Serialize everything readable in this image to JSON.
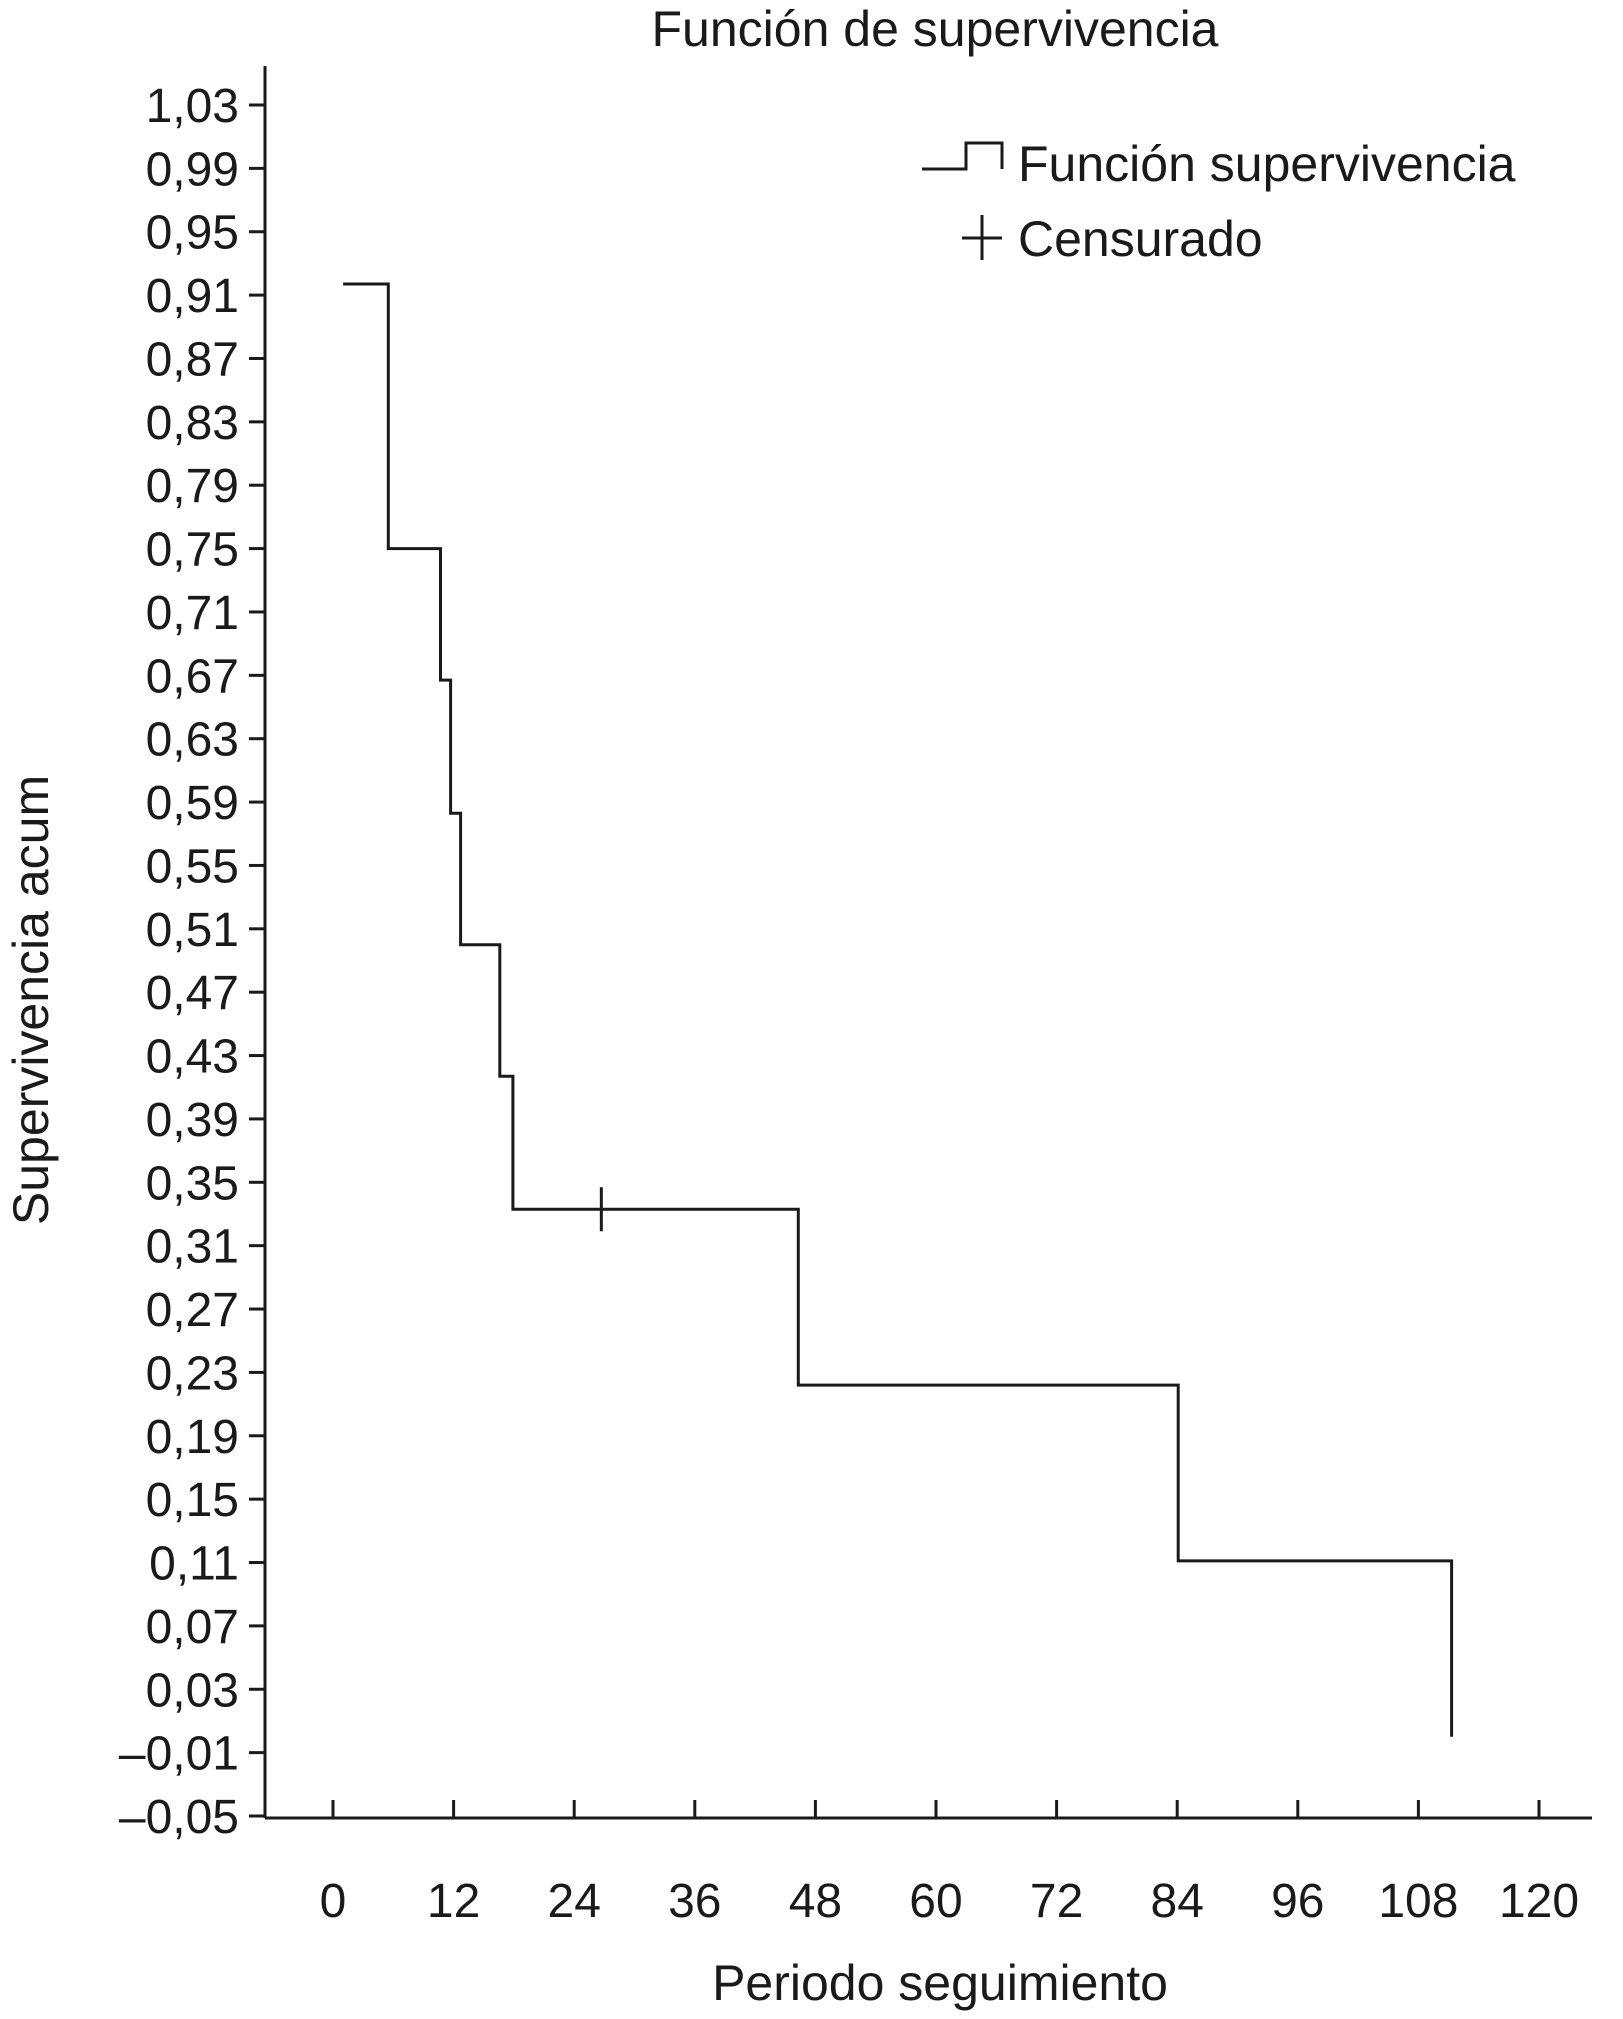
{
  "chart_data": {
    "type": "line",
    "step": true,
    "title": "Función de supervivencia",
    "xlabel": "Periodo seguimiento",
    "ylabel": "Supervivencia acum",
    "xlim": [
      -7,
      124
    ],
    "ylim": [
      -0.05,
      1.05
    ],
    "xticks": [
      0,
      12,
      24,
      36,
      48,
      60,
      72,
      84,
      96,
      108,
      120
    ],
    "yticks": [
      -0.05,
      -0.01,
      0.03,
      0.07,
      0.11,
      0.15,
      0.19,
      0.23,
      0.27,
      0.31,
      0.35,
      0.39,
      0.43,
      0.47,
      0.51,
      0.55,
      0.59,
      0.63,
      0.67,
      0.71,
      0.75,
      0.79,
      0.83,
      0.87,
      0.91,
      0.95,
      0.99,
      1.03
    ],
    "ytick_labels": [
      "–0,05",
      "–0,01",
      "0,03",
      "0,07",
      "0,11",
      "0,15",
      "0,19",
      "0,23",
      "0,27",
      "0,31",
      "0,35",
      "0,39",
      "0,43",
      "0,47",
      "0,51",
      "0,55",
      "0,59",
      "0,63",
      "0,67",
      "0,71",
      "0,75",
      "0,79",
      "0,83",
      "0,87",
      "0,91",
      "0,95",
      "0,99",
      "1,03"
    ],
    "grid": false,
    "legend_position": "top-right",
    "legend": [
      {
        "label": "Función supervivencia",
        "symbol": "step-line"
      },
      {
        "label": "Censurado",
        "symbol": "plus"
      }
    ],
    "series": [
      {
        "name": "Función supervivencia",
        "x": [
          1,
          5.5,
          5.5,
          10.7,
          10.7,
          11.7,
          11.7,
          12.7,
          12.7,
          16.6,
          16.6,
          17.9,
          17.9,
          46.3,
          46.3,
          84.1,
          84.1,
          111.3,
          111.3
        ],
        "y": [
          0.917,
          0.917,
          0.75,
          0.75,
          0.667,
          0.667,
          0.583,
          0.583,
          0.5,
          0.5,
          0.417,
          0.417,
          0.333,
          0.333,
          0.222,
          0.222,
          0.111,
          0.111,
          0.0
        ]
      }
    ],
    "censored": [
      {
        "x": 26.7,
        "y": 0.333
      }
    ]
  }
}
